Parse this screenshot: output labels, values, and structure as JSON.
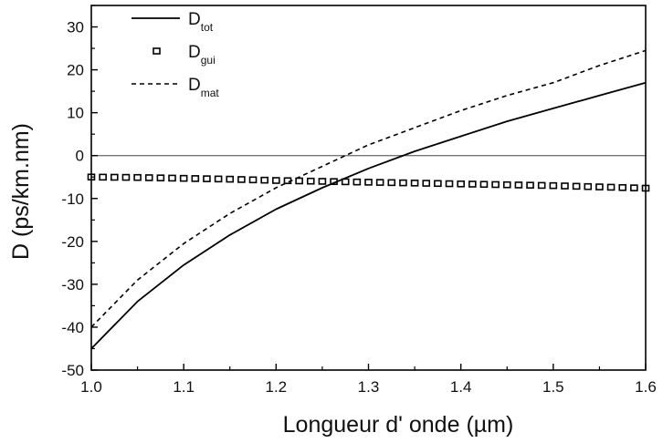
{
  "chart_data": {
    "type": "line",
    "xlabel": "Longueur d' onde (µm)",
    "ylabel": "D (ps/km.nm)",
    "xlim": [
      1.0,
      1.6
    ],
    "ylim": [
      -50,
      35
    ],
    "x_ticks": [
      {
        "value": 1.0,
        "label": "1.0"
      },
      {
        "value": 1.1,
        "label": "1.1"
      },
      {
        "value": 1.2,
        "label": "1.2"
      },
      {
        "value": 1.3,
        "label": "1.3"
      },
      {
        "value": 1.4,
        "label": "1.4"
      },
      {
        "value": 1.5,
        "label": "1.5"
      },
      {
        "value": 1.6,
        "label": "1.6"
      }
    ],
    "y_ticks": [
      {
        "value": -50,
        "label": "-50"
      },
      {
        "value": -40,
        "label": "-40"
      },
      {
        "value": -30,
        "label": "-30"
      },
      {
        "value": -20,
        "label": "-20"
      },
      {
        "value": -10,
        "label": "-10"
      },
      {
        "value": 0,
        "label": "0"
      },
      {
        "value": 10,
        "label": "10"
      },
      {
        "value": 20,
        "label": "20"
      },
      {
        "value": 30,
        "label": "30"
      }
    ],
    "grid": false,
    "reference_line_y": 0,
    "legend_position": "top-left",
    "x": [
      1.0,
      1.05,
      1.1,
      1.15,
      1.2,
      1.25,
      1.3,
      1.35,
      1.4,
      1.45,
      1.5,
      1.55,
      1.6
    ],
    "series": [
      {
        "key": "tot",
        "name_main": "D",
        "name_sub": "tot",
        "style": "solid",
        "color": "#000000",
        "values": [
          -45,
          -34,
          -25.5,
          -18.5,
          -12.5,
          -7.5,
          -3,
          1,
          4.5,
          8,
          11,
          14,
          17
        ]
      },
      {
        "key": "gui",
        "name_main": "D",
        "name_sub": "gui",
        "style": "squares",
        "color": "#000000",
        "values": [
          -5,
          -5.1,
          -5.3,
          -5.5,
          -5.8,
          -6,
          -6.2,
          -6.4,
          -6.6,
          -6.8,
          -7,
          -7.3,
          -7.6
        ]
      },
      {
        "key": "mat",
        "name_main": "D",
        "name_sub": "mat",
        "style": "dashed",
        "color": "#000000",
        "values": [
          -40,
          -29,
          -20.5,
          -13.5,
          -7.5,
          -2.5,
          2.5,
          6.5,
          10.5,
          14,
          17,
          21,
          24.5
        ]
      }
    ]
  }
}
